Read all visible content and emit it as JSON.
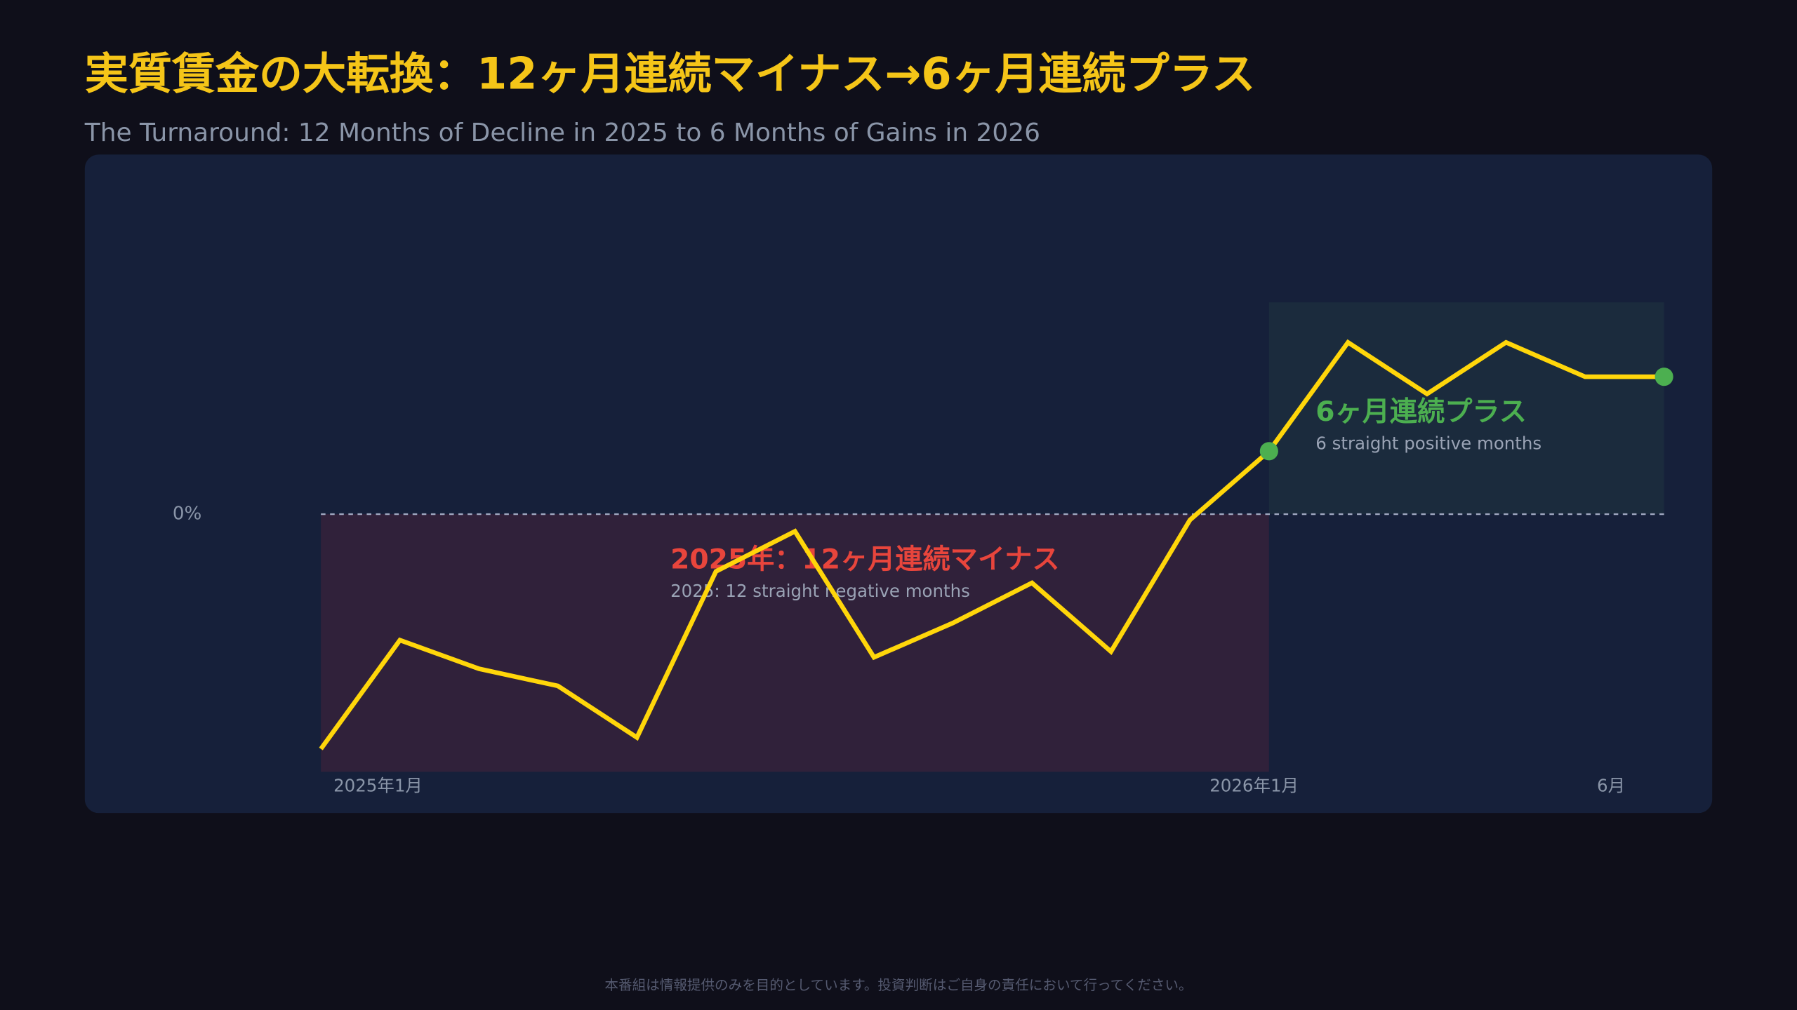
{
  "chart_data": {
    "type": "line",
    "title": "実質賃金の大転換：12ヶ月連続マイナス→6ヶ月連続プラス",
    "subtitle": "The Turnaround: 12 Months of Decline in 2025 to 6 Months of Gains in 2026",
    "categories": [
      "2025年1月",
      null,
      null,
      null,
      null,
      null,
      null,
      null,
      null,
      null,
      null,
      null,
      "2026年1月",
      null,
      null,
      null,
      null,
      "6月"
    ],
    "values": [
      -4.1,
      -2.2,
      -2.7,
      -3.0,
      -3.9,
      -1.0,
      -0.3,
      -2.5,
      -1.9,
      -1.2,
      -2.4,
      -0.1,
      1.1,
      3.0,
      2.1,
      3.0,
      2.4,
      2.4
    ],
    "color": "#ffd60a",
    "highlight_color": "#4caf50",
    "ylim": [
      -4.5,
      3.7
    ],
    "yticks": [
      {
        "value": 0,
        "label": "0%"
      }
    ],
    "annotations": [
      {
        "title": "2025年：12ヶ月連続マイナス",
        "text": "2025: 12 straight negative months",
        "color": "#e8453c"
      },
      {
        "title": "6ヶ月連続プラス",
        "text": "6 straight positive months",
        "color": "#4caf50"
      }
    ],
    "footer": "本番組は情報提供のみを目的としています。投資判断はご自身の責任において行ってください。"
  }
}
